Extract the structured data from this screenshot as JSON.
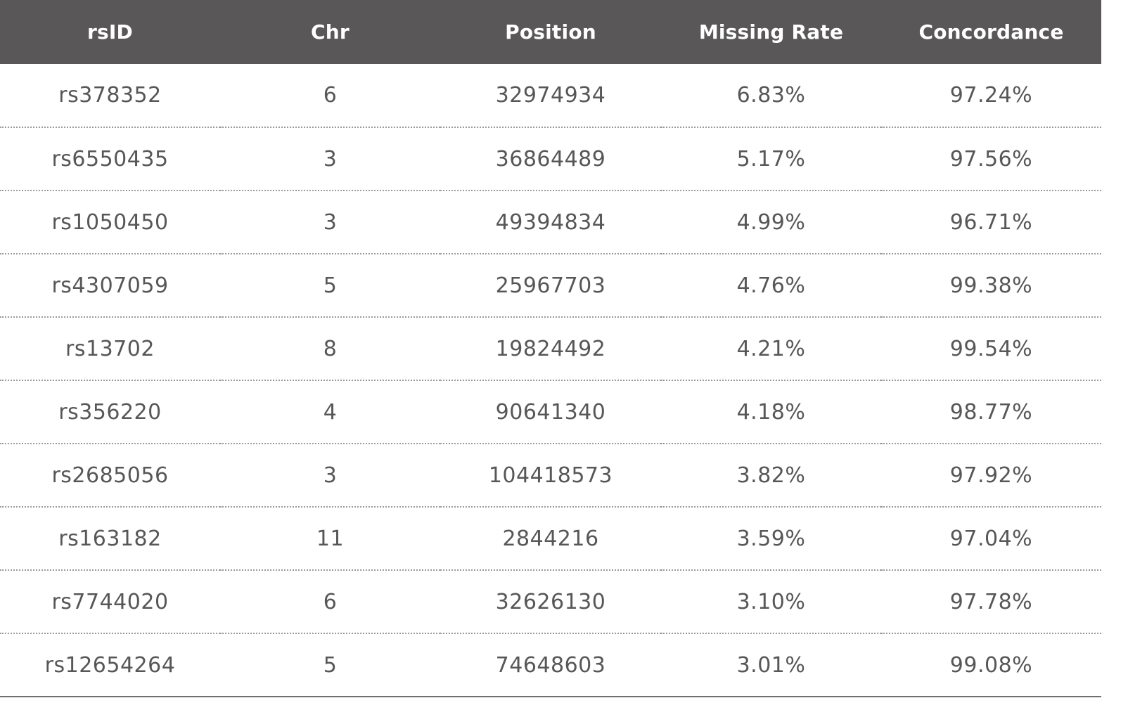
{
  "table": {
    "headers": [
      "rsID",
      "Chr",
      "Position",
      "Missing Rate",
      "Concordance"
    ],
    "rows": [
      [
        "rs378352",
        "6",
        "32974934",
        "6.83%",
        "97.24%"
      ],
      [
        "rs6550435",
        "3",
        "36864489",
        "5.17%",
        "97.56%"
      ],
      [
        "rs1050450",
        "3",
        "49394834",
        "4.99%",
        "96.71%"
      ],
      [
        "rs4307059",
        "5",
        "25967703",
        "4.76%",
        "99.38%"
      ],
      [
        "rs13702",
        "8",
        "19824492",
        "4.21%",
        "99.54%"
      ],
      [
        "rs356220",
        "4",
        "90641340",
        "4.18%",
        "98.77%"
      ],
      [
        "rs2685056",
        "3",
        "104418573",
        "3.82%",
        "97.92%"
      ],
      [
        "rs163182",
        "11",
        "2844216",
        "3.59%",
        "97.04%"
      ],
      [
        "rs7744020",
        "6",
        "32626130",
        "3.10%",
        "97.78%"
      ],
      [
        "rs12654264",
        "5",
        "74648603",
        "3.01%",
        "99.08%"
      ]
    ]
  },
  "colors": {
    "header_background": "#595757",
    "header_text": "#ffffff",
    "cell_text": "#575757",
    "row_divider": "#9a9a9a"
  }
}
